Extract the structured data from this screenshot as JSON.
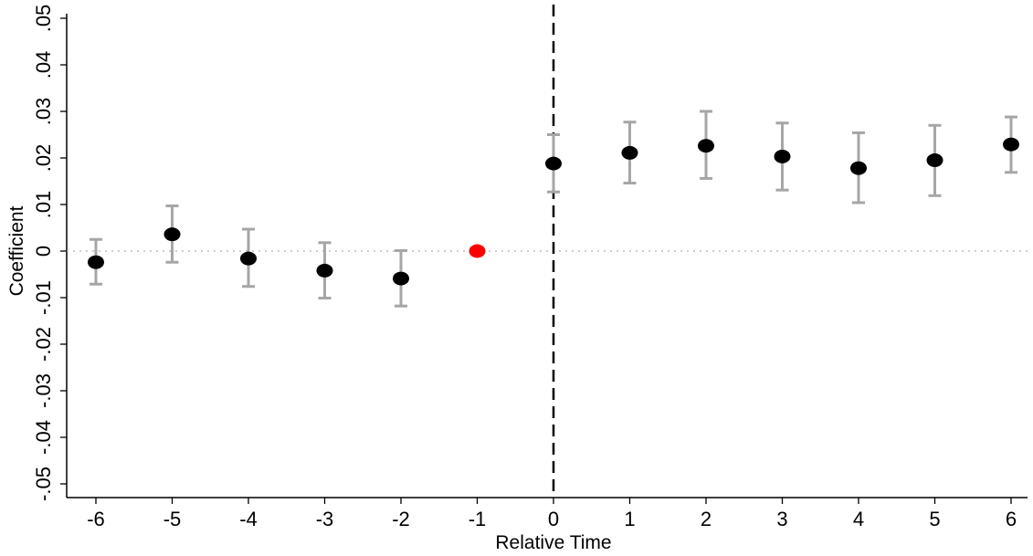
{
  "chart_data": {
    "type": "scatter",
    "title": "",
    "xlabel": "Relative Time",
    "ylabel": "Coefficient",
    "xlim": [
      -6.4,
      6.2
    ],
    "ylim": [
      -0.05,
      0.05
    ],
    "x_ticks": [
      -6,
      -5,
      -4,
      -3,
      -2,
      -1,
      0,
      1,
      2,
      3,
      4,
      5,
      6
    ],
    "x_tick_labels": [
      "-6",
      "-5",
      "-4",
      "-3",
      "-2",
      "-1",
      "0",
      "1",
      "2",
      "3",
      "4",
      "5",
      "6"
    ],
    "y_ticks": [
      -0.05,
      -0.04,
      -0.03,
      -0.02,
      -0.01,
      0,
      0.01,
      0.02,
      0.03,
      0.04,
      0.05
    ],
    "y_tick_labels": [
      "-.05",
      "-.04",
      "-.03",
      "-.02",
      "-.01",
      "0",
      ".01",
      ".02",
      ".03",
      ".04",
      ".05"
    ],
    "reference_line_x": 0,
    "reference_line_y": 0,
    "grid": false,
    "points": [
      {
        "x": -6,
        "y": -0.0024,
        "ci_low": -0.0071,
        "ci_high": 0.0025
      },
      {
        "x": -5,
        "y": 0.0036,
        "ci_low": -0.0024,
        "ci_high": 0.0097
      },
      {
        "x": -4,
        "y": -0.0016,
        "ci_low": -0.0076,
        "ci_high": 0.0047
      },
      {
        "x": -3,
        "y": -0.0042,
        "ci_low": -0.0101,
        "ci_high": 0.0018
      },
      {
        "x": -2,
        "y": -0.0059,
        "ci_low": -0.0118,
        "ci_high": 0.0001
      },
      {
        "x": -1,
        "y": 0,
        "ci_low": null,
        "ci_high": null,
        "reference": true
      },
      {
        "x": 0,
        "y": 0.0188,
        "ci_low": 0.0127,
        "ci_high": 0.025
      },
      {
        "x": 1,
        "y": 0.0211,
        "ci_low": 0.0146,
        "ci_high": 0.0277
      },
      {
        "x": 2,
        "y": 0.0226,
        "ci_low": 0.0156,
        "ci_high": 0.03
      },
      {
        "x": 3,
        "y": 0.0203,
        "ci_low": 0.0131,
        "ci_high": 0.0275
      },
      {
        "x": 4,
        "y": 0.0178,
        "ci_low": 0.0104,
        "ci_high": 0.0254
      },
      {
        "x": 5,
        "y": 0.0195,
        "ci_low": 0.0119,
        "ci_high": 0.027
      },
      {
        "x": 6,
        "y": 0.0229,
        "ci_low": 0.0169,
        "ci_high": 0.0288
      }
    ],
    "colors": {
      "point": "#000000",
      "reference_point": "#ff0000",
      "ci": "#a6a6a6",
      "zero_line": "#b0b0b0"
    }
  }
}
